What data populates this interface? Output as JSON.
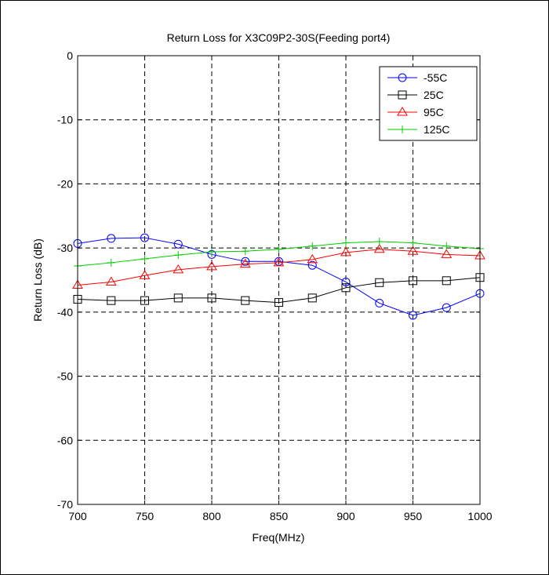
{
  "chart_data": {
    "type": "line",
    "title": "Return Loss for X3C09P2-30S(Feeding port4)",
    "xlabel": "Freq(MHz)",
    "ylabel": "Return Loss (dB)",
    "xlim": [
      700,
      1000
    ],
    "ylim": [
      -70,
      0
    ],
    "xticks": [
      "700",
      "750",
      "800",
      "850",
      "900",
      "950",
      "1000"
    ],
    "yticks": [
      "0",
      "-10",
      "-20",
      "-30",
      "-40",
      "-50",
      "-60",
      "-70"
    ],
    "grid": true,
    "legend_position": "top-right",
    "x": [
      700,
      725,
      750,
      775,
      800,
      825,
      850,
      875,
      900,
      925,
      950,
      975,
      1000
    ],
    "series": [
      {
        "name": "-55C",
        "color": "#0000ff",
        "marker": "circle",
        "values": [
          -29.3,
          -28.5,
          -28.4,
          -29.4,
          -31.0,
          -32.1,
          -32.1,
          -32.7,
          -35.3,
          -38.6,
          -40.5,
          -39.3,
          -37.1
        ]
      },
      {
        "name": "25C",
        "color": "#000000",
        "marker": "square",
        "values": [
          -38.0,
          -38.2,
          -38.2,
          -37.8,
          -37.8,
          -38.2,
          -38.5,
          -37.8,
          -36.2,
          -35.4,
          -35.1,
          -35.1,
          -34.6
        ]
      },
      {
        "name": "95C",
        "color": "#ff0000",
        "marker": "triangle",
        "values": [
          -35.8,
          -35.3,
          -34.3,
          -33.4,
          -32.9,
          -32.5,
          -32.3,
          -31.8,
          -30.7,
          -30.2,
          -30.5,
          -31.0,
          -31.2
        ]
      },
      {
        "name": "125C",
        "color": "#00cc00",
        "marker": "plus",
        "values": [
          -32.8,
          -32.3,
          -31.7,
          -31.1,
          -30.6,
          -30.5,
          -30.2,
          -29.7,
          -29.2,
          -29.0,
          -29.2,
          -29.7,
          -30.1
        ]
      }
    ]
  }
}
